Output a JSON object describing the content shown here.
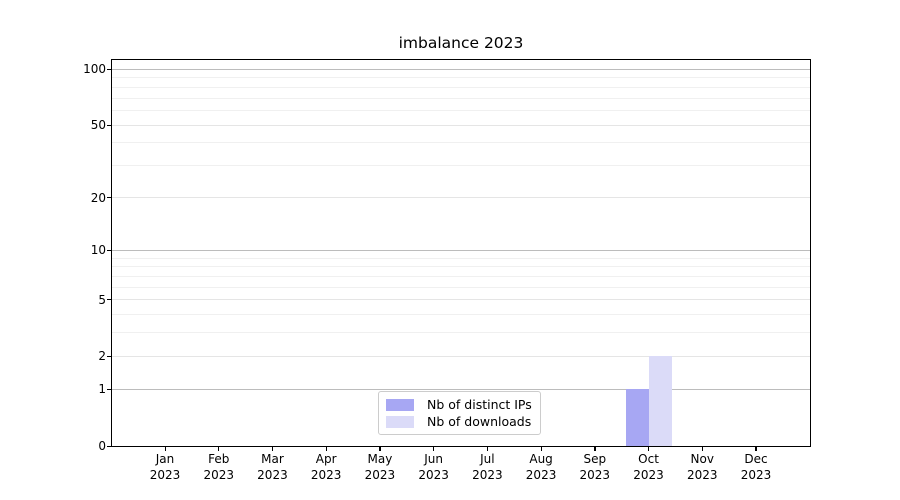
{
  "chart_data": {
    "type": "bar",
    "title": "imbalance 2023",
    "categories": [
      "Jan",
      "Feb",
      "Mar",
      "Apr",
      "May",
      "Jun",
      "Jul",
      "Aug",
      "Sep",
      "Oct",
      "Nov",
      "Dec"
    ],
    "x_year_label": "2023",
    "series": [
      {
        "name": "Nb of distinct IPs",
        "color": "#a7a7f3",
        "values": [
          0,
          0,
          0,
          0,
          0,
          0,
          0,
          0,
          0,
          1,
          0,
          0
        ]
      },
      {
        "name": "Nb of downloads",
        "color": "#dbdbf8",
        "values": [
          0,
          0,
          0,
          0,
          0,
          0,
          0,
          0,
          0,
          2,
          0,
          0
        ]
      }
    ],
    "y_axis": {
      "scale": "log1p",
      "min": 0,
      "max": 112.3,
      "ticks": [
        0,
        1,
        2,
        5,
        10,
        20,
        50,
        100
      ],
      "minor_ticks": [
        3,
        4,
        6,
        7,
        8,
        9,
        30,
        40,
        60,
        70,
        80,
        90
      ]
    },
    "x_axis": {
      "tick_count": 12
    },
    "grid": {
      "on": true,
      "power10_color": "#bcbcbc",
      "level2_color": "#e5e5e5",
      "minor_color": "#f0f0f0"
    },
    "legend": {
      "position": "lower-center",
      "entries": [
        "Nb of distinct IPs",
        "Nb of downloads"
      ]
    },
    "colors": {
      "axis": "#000000",
      "text": "#000000",
      "background": "#ffffff"
    }
  }
}
